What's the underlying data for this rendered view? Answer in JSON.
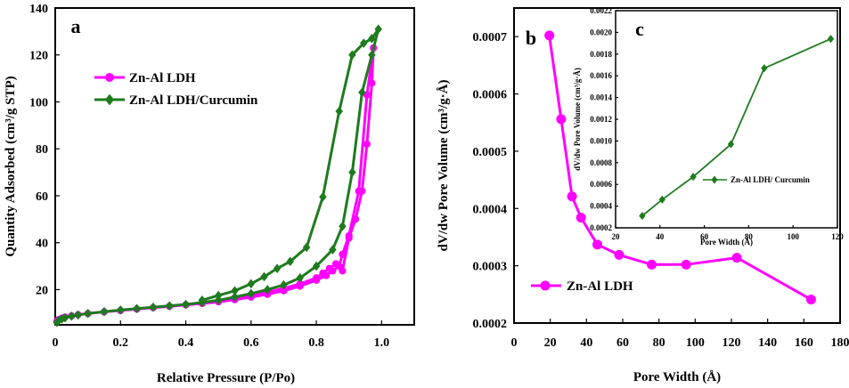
{
  "chart_data": [
    {
      "id": "a",
      "type": "line",
      "panel_label": "a",
      "xlabel": "Relative Pressure (P/Po)",
      "ylabel": "Quantity Adsorbed (cm³/g STP)",
      "xlim": [
        0,
        1.1
      ],
      "ylim": [
        5,
        140
      ],
      "xticks": [
        "0",
        "0.2",
        "0.4",
        "0.6",
        "0.8",
        "1.0"
      ],
      "xtick_values": [
        0,
        0.2,
        0.4,
        0.6,
        0.8,
        1.0
      ],
      "yticks": [
        "20",
        "40",
        "60",
        "80",
        "100",
        "120",
        "140"
      ],
      "ytick_values": [
        20,
        40,
        60,
        80,
        100,
        120,
        140
      ],
      "legend": [
        "Zn-Al LDH",
        "Zn-Al LDH/Curcumin"
      ],
      "series": [
        {
          "name": "Zn-Al LDH",
          "color": "#FF00FF",
          "marker": "circle",
          "points": [
            [
              0.005,
              6.5
            ],
            [
              0.01,
              7.2
            ],
            [
              0.02,
              7.8
            ],
            [
              0.03,
              8.3
            ],
            [
              0.05,
              8.8
            ],
            [
              0.07,
              9.3
            ],
            [
              0.1,
              9.8
            ],
            [
              0.15,
              10.5
            ],
            [
              0.2,
              11.1
            ],
            [
              0.25,
              11.7
            ],
            [
              0.3,
              12.3
            ],
            [
              0.35,
              12.9
            ],
            [
              0.4,
              13.5
            ],
            [
              0.45,
              14.1
            ],
            [
              0.5,
              14.8
            ],
            [
              0.55,
              15.7
            ],
            [
              0.6,
              16.8
            ],
            [
              0.65,
              18.0
            ],
            [
              0.7,
              19.5
            ],
            [
              0.75,
              21.5
            ],
            [
              0.8,
              24.0
            ],
            [
              0.83,
              26.0
            ],
            [
              0.85,
              28.0
            ],
            [
              0.87,
              30.0
            ],
            [
              0.88,
              35.0
            ],
            [
              0.9,
              43.0
            ],
            [
              0.93,
              62.0
            ],
            [
              0.955,
              103.0
            ],
            [
              0.975,
              123.0
            ],
            [
              0.97,
              108.0
            ],
            [
              0.955,
              82.0
            ],
            [
              0.94,
              62.0
            ],
            [
              0.92,
              50.0
            ],
            [
              0.9,
              42.0
            ],
            [
              0.88,
              28.0
            ],
            [
              0.86,
              31.0
            ],
            [
              0.84,
              29.0
            ],
            [
              0.82,
              27.0
            ],
            [
              0.8,
              25.0
            ],
            [
              0.75,
              22.5
            ],
            [
              0.7,
              20.5
            ],
            [
              0.65,
              19.0
            ],
            [
              0.6,
              17.8
            ],
            [
              0.55,
              16.5
            ]
          ]
        },
        {
          "name": "Zn-Al LDH/Curcumin",
          "color": "#1E7B1E",
          "marker": "diamond",
          "points": [
            [
              0.005,
              6.0
            ],
            [
              0.01,
              6.8
            ],
            [
              0.02,
              7.5
            ],
            [
              0.03,
              8.0
            ],
            [
              0.05,
              8.7
            ],
            [
              0.07,
              9.2
            ],
            [
              0.1,
              9.8
            ],
            [
              0.15,
              10.6
            ],
            [
              0.2,
              11.3
            ],
            [
              0.25,
              11.9
            ],
            [
              0.3,
              12.5
            ],
            [
              0.35,
              13.1
            ],
            [
              0.4,
              13.7
            ],
            [
              0.45,
              14.5
            ],
            [
              0.5,
              15.5
            ],
            [
              0.55,
              16.8
            ],
            [
              0.6,
              18.3
            ],
            [
              0.65,
              20.0
            ],
            [
              0.7,
              22.0
            ],
            [
              0.75,
              25.0
            ],
            [
              0.8,
              30.0
            ],
            [
              0.85,
              37.0
            ],
            [
              0.88,
              47.0
            ],
            [
              0.91,
              70.0
            ],
            [
              0.94,
              104.0
            ],
            [
              0.97,
              120.0
            ],
            [
              0.99,
              131.0
            ],
            [
              0.97,
              127.0
            ],
            [
              0.945,
              125.0
            ],
            [
              0.91,
              120.0
            ],
            [
              0.87,
              96.0
            ],
            [
              0.82,
              59.5
            ],
            [
              0.77,
              38.0
            ],
            [
              0.72,
              32.0
            ],
            [
              0.68,
              29.0
            ],
            [
              0.64,
              25.5
            ],
            [
              0.6,
              22.5
            ],
            [
              0.55,
              19.5
            ],
            [
              0.5,
              17.5
            ],
            [
              0.45,
              15.5
            ]
          ]
        }
      ]
    },
    {
      "id": "b",
      "type": "line",
      "panel_label": "b",
      "xlabel": "Pore Width (Å)",
      "ylabel": "dV/dw Pore Volume (cm³/g·Å)",
      "xlim": [
        0,
        180
      ],
      "ylim": [
        0.0002,
        0.00075
      ],
      "xticks": [
        "0",
        "20",
        "40",
        "60",
        "80",
        "100",
        "120",
        "140",
        "160",
        "180"
      ],
      "xtick_values": [
        0,
        20,
        40,
        60,
        80,
        100,
        120,
        140,
        160,
        180
      ],
      "yticks": [
        "0.0002",
        "0.0003",
        "0.0004",
        "0.0005",
        "0.0006",
        "0.0007"
      ],
      "ytick_values": [
        0.0002,
        0.0003,
        0.0004,
        0.0005,
        0.0006,
        0.0007
      ],
      "legend": [
        "Zn-Al LDH"
      ],
      "series": [
        {
          "name": "Zn-Al LDH",
          "color": "#FF00FF",
          "marker": "circle",
          "points": [
            [
              19.5,
              0.000702
            ],
            [
              26,
              0.000556
            ],
            [
              32,
              0.000421
            ],
            [
              37,
              0.000384
            ],
            [
              46,
              0.000337
            ],
            [
              58,
              0.000319
            ],
            [
              76,
              0.000302
            ],
            [
              95,
              0.000302
            ],
            [
              123,
              0.000314
            ],
            [
              164,
              0.000241
            ]
          ]
        }
      ]
    },
    {
      "id": "c",
      "type": "line",
      "panel_label": "c",
      "xlabel": "Pore Width (Å)",
      "ylabel": "dV/dw Pore Volume (cm³/g·Å)",
      "xlim": [
        20,
        120
      ],
      "ylim": [
        0.0002,
        0.0022
      ],
      "xticks": [
        "20",
        "40",
        "60",
        "80",
        "100",
        "120"
      ],
      "xtick_values": [
        20,
        40,
        60,
        80,
        100,
        120
      ],
      "yticks": [
        "0.0002",
        "0.0004",
        "0.0006",
        "0.0008",
        "0.0010",
        "0.0012",
        "0.0014",
        "0.0016",
        "0.0018",
        "0.0020",
        "0.0022"
      ],
      "ytick_values": [
        0.0002,
        0.0004,
        0.0006,
        0.0008,
        0.001,
        0.0012,
        0.0014,
        0.0016,
        0.0018,
        0.002,
        0.0022
      ],
      "legend": [
        "Zn-Al LDH/ Curcumin"
      ],
      "series": [
        {
          "name": "Zn-Al LDH/ Curcumin",
          "color": "#1E7B1E",
          "marker": "diamond",
          "points": [
            [
              32,
              0.00031
            ],
            [
              41,
              0.00046
            ],
            [
              55,
              0.00067
            ],
            [
              72,
              0.00097
            ],
            [
              87,
              0.00167
            ],
            [
              117,
              0.00194
            ]
          ]
        }
      ]
    }
  ]
}
